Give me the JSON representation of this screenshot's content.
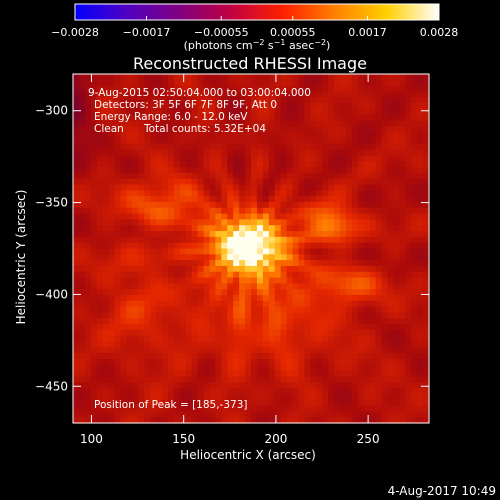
{
  "chart_data": {
    "type": "heatmap",
    "title": "Reconstructed RHESSI Image",
    "xlabel": "Heliocentric X (arcsec)",
    "ylabel": "Heliocentric Y (arcsec)",
    "xlim": [
      90,
      283
    ],
    "ylim": [
      -470,
      -280
    ],
    "x_ticks": [
      100,
      150,
      200,
      250
    ],
    "y_ticks": [
      -300,
      -350,
      -400,
      -450
    ],
    "x_tick_labels": [
      "100",
      "150",
      "200",
      "250"
    ],
    "y_tick_labels": [
      "−300",
      "−350",
      "−400",
      "−450"
    ],
    "colorbar": {
      "min": -0.0028,
      "max": 0.0028,
      "tick_values": [
        -0.0028,
        -0.0017,
        -0.00055,
        0.00055,
        0.0017,
        0.0028
      ],
      "tick_labels": [
        "−0.0028",
        "−0.0017",
        "−0.00055",
        "0.00055",
        "0.0017",
        "0.0028"
      ],
      "unit_label": "(photons cm",
      "unit_exp1": "−2",
      "unit_mid": " s",
      "unit_exp2": "−1",
      "unit_end": " asec",
      "unit_exp3": "−2",
      "unit_close": ")",
      "colors": [
        "#0000ff",
        "#5000c0",
        "#800080",
        "#c00040",
        "#ff2000",
        "#ff8000",
        "#ffd000",
        "#ffffff"
      ]
    },
    "peak": {
      "x": 185,
      "y": -373
    },
    "sources": [
      {
        "x": 185,
        "y": -373,
        "sx": 22,
        "sy": 17,
        "amp": 1.0
      },
      {
        "x": 230,
        "y": -360,
        "sx": 14,
        "sy": 10,
        "amp": 0.55
      },
      {
        "x": 140,
        "y": -350,
        "sx": 24,
        "sy": 14,
        "amp": 0.35
      },
      {
        "x": 195,
        "y": -410,
        "sx": 40,
        "sy": 30,
        "amp": 0.28
      },
      {
        "x": 240,
        "y": -395,
        "sx": 18,
        "sy": 10,
        "amp": 0.3
      },
      {
        "x": 125,
        "y": -405,
        "sx": 20,
        "sy": 30,
        "amp": 0.2
      }
    ],
    "background": 0.48,
    "annotations": {
      "date_range": "9-Aug-2015 02:50:04.000 to 03:00:04.000",
      "detectors": "Detectors: 3F 5F 6F 7F 8F 9F, Att 0",
      "energy": "Energy Range: 6.0 - 12.0 keV",
      "clean": "Clean",
      "total_counts": "Total counts: 5.32E+04",
      "position_of_peak": "Position of Peak = [185,-373]"
    }
  },
  "footer": {
    "timestamp": "4-Aug-2017 10:49"
  }
}
